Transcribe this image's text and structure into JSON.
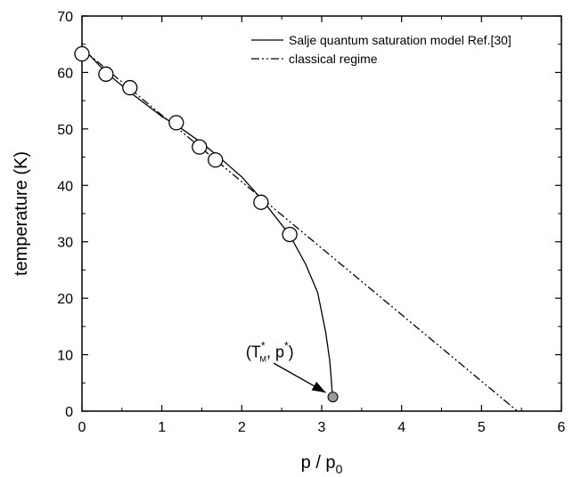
{
  "chart_data": {
    "type": "line",
    "title": "",
    "xlabel": "p / p",
    "xlabel_sub": "0",
    "ylabel": "temperature (K)",
    "xlim": [
      0,
      6
    ],
    "ylim": [
      0,
      70
    ],
    "xticks": [
      0,
      1,
      2,
      3,
      4,
      5,
      6
    ],
    "yticks": [
      0,
      10,
      20,
      30,
      40,
      50,
      60,
      70
    ],
    "grid": false,
    "legend_position": "top-right",
    "series": [
      {
        "name": "Salje quantum saturation model Ref.[30]",
        "style": "solid",
        "x": [
          0.0,
          0.3,
          0.6,
          1.0,
          1.2,
          1.5,
          1.7,
          2.0,
          2.25,
          2.6,
          2.8,
          2.95,
          3.05,
          3.1,
          3.12,
          3.13,
          3.14
        ],
        "y": [
          64.5,
          60.0,
          56.5,
          52.2,
          50.5,
          47.5,
          45.2,
          41.5,
          37.5,
          31.2,
          26.0,
          21.0,
          14.0,
          9.0,
          5.5,
          3.5,
          2.5
        ]
      },
      {
        "name": "classical regime",
        "style": "dashdotdot",
        "x": [
          0.0,
          5.45
        ],
        "y": [
          64.2,
          0.0
        ]
      },
      {
        "name": "",
        "style": "markers-open",
        "x": [
          0.0,
          0.3,
          0.6,
          1.18,
          1.47,
          1.67,
          2.24,
          2.6
        ],
        "y": [
          63.3,
          59.7,
          57.3,
          51.1,
          46.8,
          44.5,
          37.0,
          31.3
        ]
      }
    ],
    "special_point": {
      "x": 3.14,
      "y": 2.5,
      "color": "#9a9a9a"
    },
    "annotation": {
      "text_T": "(T",
      "sup1": "*",
      "sub": "M",
      "text_mid": ", p",
      "sup2": "*",
      "text_end": ")",
      "label_x": 2.05,
      "label_y": 9.5,
      "arrow_from": [
        2.4,
        8.5
      ],
      "arrow_to": [
        3.05,
        3.3
      ]
    }
  }
}
